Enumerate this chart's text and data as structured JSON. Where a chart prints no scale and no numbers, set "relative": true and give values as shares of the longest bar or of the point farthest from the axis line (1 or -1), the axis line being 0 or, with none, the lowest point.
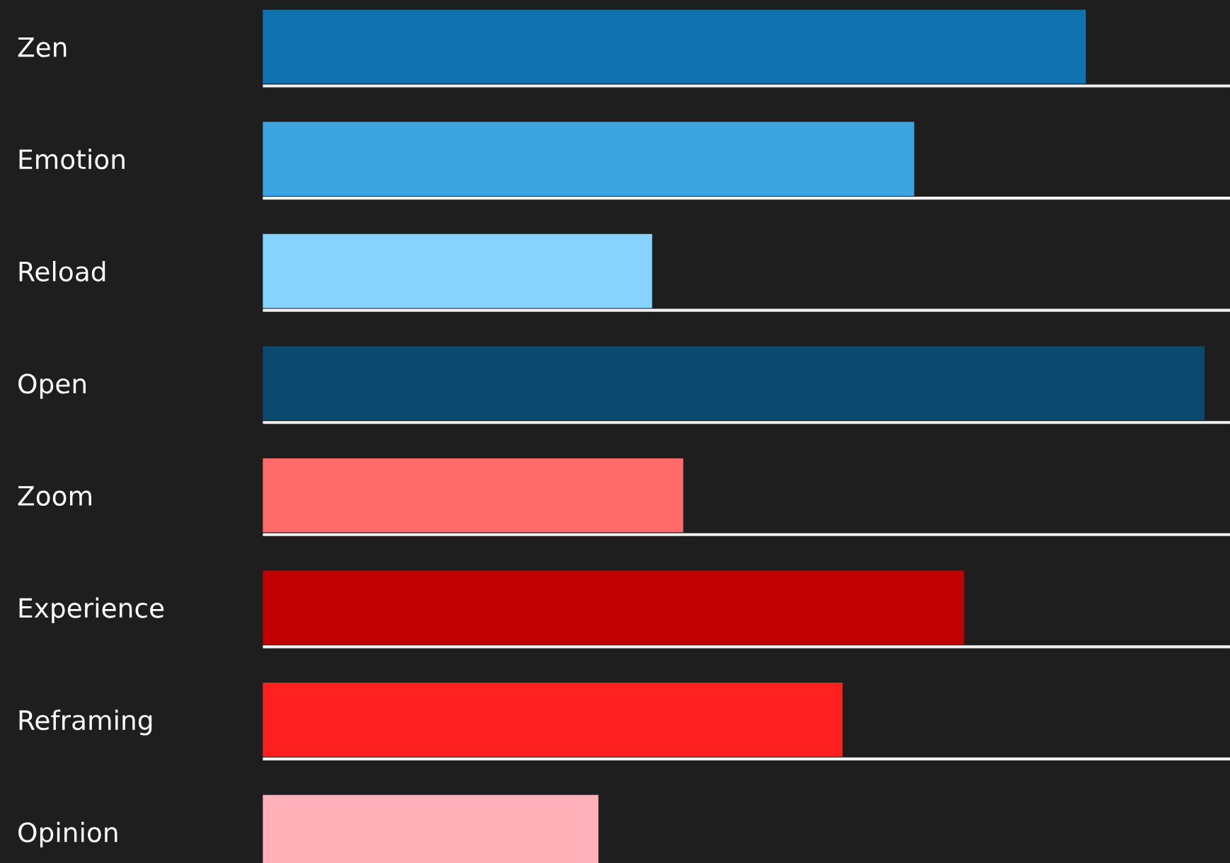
{
  "chart_data": {
    "type": "bar",
    "orientation": "horizontal",
    "relative": true,
    "tick_labels": "y",
    "grid": "y",
    "categories": [
      "Zen",
      "Emotion",
      "Reload",
      "Open",
      "Zoom",
      "Experience",
      "Reframing",
      "Opinion"
    ],
    "values": [
      0.874,
      0.692,
      0.414,
      1,
      0.447,
      0.745,
      0.616,
      0.357
    ],
    "colors": [
      "#1172b0",
      "#3ba5e0",
      "#87d3ff",
      "#0b4a6e",
      "#ff6b6b",
      "#c00000",
      "#ff2020",
      "#ffb0b8"
    ]
  }
}
